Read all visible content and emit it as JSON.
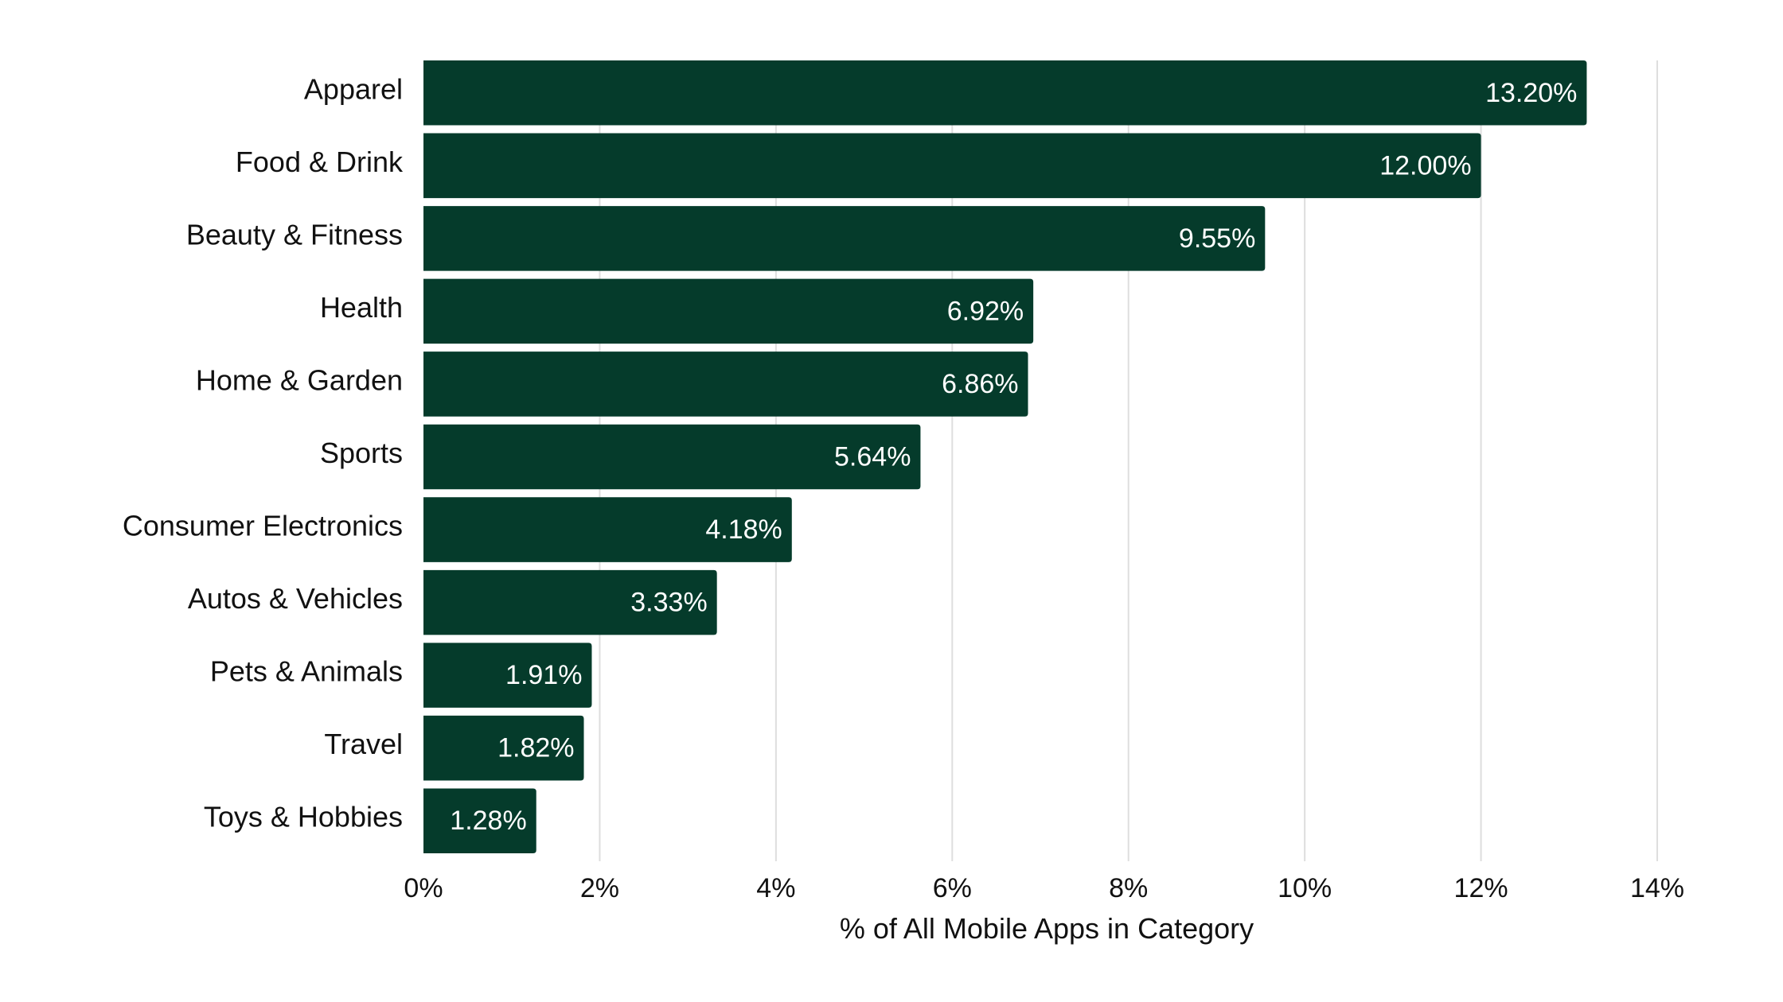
{
  "chart_data": {
    "type": "bar",
    "orientation": "horizontal",
    "categories": [
      "Apparel",
      "Food & Drink",
      "Beauty & Fitness",
      "Health",
      "Home & Garden",
      "Sports",
      "Consumer Electronics",
      "Autos & Vehicles",
      "Pets & Animals",
      "Travel",
      "Toys & Hobbies"
    ],
    "values": [
      13.2,
      12.0,
      9.55,
      6.92,
      6.86,
      5.64,
      4.18,
      3.33,
      1.91,
      1.82,
      1.28
    ],
    "data_labels": [
      "13.20%",
      "12.00%",
      "9.55%",
      "6.92%",
      "6.86%",
      "5.64%",
      "4.18%",
      "3.33%",
      "1.91%",
      "1.82%",
      "1.28%"
    ],
    "xlim": [
      0,
      14
    ],
    "x_ticks": [
      0,
      2,
      4,
      6,
      8,
      10,
      12,
      14
    ],
    "x_tick_labels": [
      "0%",
      "2%",
      "4%",
      "6%",
      "8%",
      "10%",
      "12%",
      "14%"
    ],
    "xlabel": "% of All Mobile Apps in Category",
    "ylabel": "",
    "title": "",
    "grid": "vertical",
    "legend": "none",
    "colors": {
      "bar": "#053b2b",
      "data_label": "#ffffff",
      "gridline": "#dedede",
      "text": "#111111",
      "background": "#ffffff"
    }
  }
}
